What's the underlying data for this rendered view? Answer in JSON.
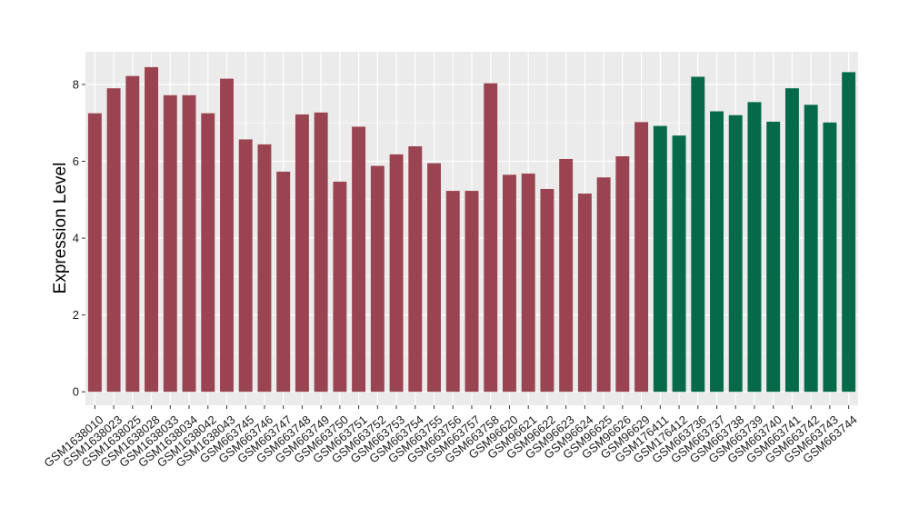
{
  "chart_data": {
    "type": "bar",
    "title": "",
    "xlabel": "",
    "ylabel": "Expression Level",
    "ylim": [
      -0.35,
      8.85
    ],
    "yticks": [
      0,
      2,
      4,
      6,
      8
    ],
    "grid": true,
    "background": "#EBEBEB",
    "group_colors": {
      "A": "#9B4451",
      "B": "#06694A"
    },
    "categories": [
      "GSM1638010",
      "GSM1638023",
      "GSM1638025",
      "GSM1638028",
      "GSM1638033",
      "GSM1638034",
      "GSM1638042",
      "GSM1638043",
      "GSM663745",
      "GSM663746",
      "GSM663747",
      "GSM663748",
      "GSM663749",
      "GSM663750",
      "GSM663751",
      "GSM663752",
      "GSM663753",
      "GSM663754",
      "GSM663755",
      "GSM663756",
      "GSM663757",
      "GSM663758",
      "GSM96620",
      "GSM96621",
      "GSM96622",
      "GSM96623",
      "GSM96624",
      "GSM96625",
      "GSM96626",
      "GSM96629",
      "GSM176411",
      "GSM176412",
      "GSM663736",
      "GSM663737",
      "GSM663738",
      "GSM663739",
      "GSM663740",
      "GSM663741",
      "GSM663742",
      "GSM663743",
      "GSM663744"
    ],
    "values": [
      7.25,
      7.9,
      8.22,
      8.45,
      7.72,
      7.72,
      7.25,
      8.15,
      6.57,
      6.44,
      5.73,
      7.22,
      7.27,
      5.47,
      6.9,
      5.88,
      6.18,
      6.39,
      5.95,
      5.23,
      5.23,
      8.03,
      5.65,
      5.68,
      5.28,
      6.06,
      5.16,
      5.58,
      6.13,
      7.02,
      6.92,
      6.67,
      8.2,
      7.3,
      7.2,
      7.54,
      7.03,
      7.9,
      7.47,
      7.01,
      8.32
    ],
    "groups": [
      "A",
      "A",
      "A",
      "A",
      "A",
      "A",
      "A",
      "A",
      "A",
      "A",
      "A",
      "A",
      "A",
      "A",
      "A",
      "A",
      "A",
      "A",
      "A",
      "A",
      "A",
      "A",
      "A",
      "A",
      "A",
      "A",
      "A",
      "A",
      "A",
      "A",
      "B",
      "B",
      "B",
      "B",
      "B",
      "B",
      "B",
      "B",
      "B",
      "B",
      "B"
    ]
  }
}
